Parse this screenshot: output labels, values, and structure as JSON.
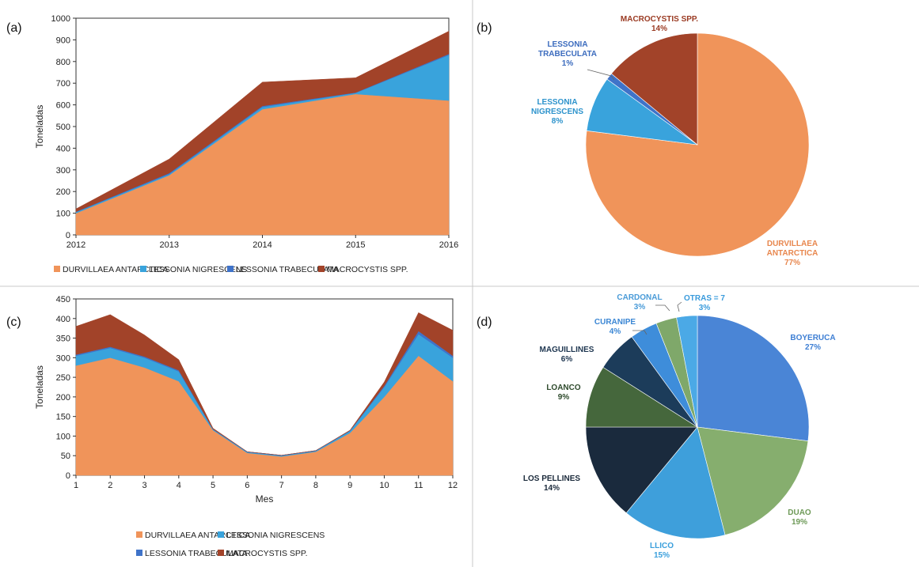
{
  "colors": {
    "durvillaea": "#F0945A",
    "nigrescens": "#39A3DC",
    "trabeculata": "#3F73C9",
    "macrocystis": "#A24329"
  },
  "chart_data": [
    {
      "panel": "(a)",
      "type": "area",
      "stacked": true,
      "x": [
        2012,
        2013,
        2014,
        2015,
        2016
      ],
      "ylabel": "Toneladas",
      "xlabel": "",
      "ylim": [
        0,
        1000
      ],
      "yticks": [
        0,
        100,
        200,
        300,
        400,
        500,
        600,
        700,
        800,
        900,
        1000
      ],
      "series": [
        {
          "name": "DURVILLAEA ANTARCTICA",
          "color": "#F0945A",
          "values": [
            100,
            275,
            580,
            650,
            620
          ]
        },
        {
          "name": "LESSONIA NIGRESCENS",
          "color": "#39A3DC",
          "values": [
            5,
            5,
            10,
            5,
            210
          ]
        },
        {
          "name": "LESSONIA TRABECULATA",
          "color": "#3F73C9",
          "values": [
            2,
            5,
            5,
            2,
            5
          ]
        },
        {
          "name": "MACROCYSTIS SPP.",
          "color": "#A24329",
          "values": [
            13,
            65,
            110,
            68,
            105
          ]
        }
      ],
      "legend": "bottom"
    },
    {
      "panel": "(b)",
      "type": "pie",
      "slices": [
        {
          "name": "DURVILLAEA ANTARCTICA",
          "value": 77,
          "label": "77%",
          "color": "#F0945A"
        },
        {
          "name": "LESSONIA NIGRESCENS",
          "value": 8,
          "label": "8%",
          "color": "#39A3DC"
        },
        {
          "name": "LESSONIA TRABECULATA",
          "value": 1,
          "label": "1%",
          "color": "#3F73C9"
        },
        {
          "name": "MACROCYSTIS SPP.",
          "value": 14,
          "label": "14%",
          "color": "#A24329"
        }
      ]
    },
    {
      "panel": "(c)",
      "type": "area",
      "stacked": true,
      "x": [
        1,
        2,
        3,
        4,
        5,
        6,
        7,
        8,
        9,
        10,
        11,
        12
      ],
      "xlabel": "Mes",
      "ylabel": "Toneladas",
      "ylim": [
        0,
        450
      ],
      "yticks": [
        0,
        50,
        100,
        150,
        200,
        250,
        300,
        350,
        400,
        450
      ],
      "series": [
        {
          "name": "DURVILLAEA ANTARCTICA",
          "color": "#F0945A",
          "values": [
            280,
            300,
            275,
            240,
            115,
            57,
            48,
            60,
            108,
            200,
            305,
            240
          ]
        },
        {
          "name": "LESSONIA NIGRESCENS",
          "color": "#39A3DC",
          "values": [
            25,
            25,
            25,
            25,
            2,
            2,
            2,
            2,
            5,
            25,
            55,
            60
          ]
        },
        {
          "name": "LESSONIA TRABECULATA",
          "color": "#3F73C9",
          "values": [
            3,
            3,
            3,
            3,
            1,
            1,
            1,
            1,
            1,
            3,
            8,
            5
          ]
        },
        {
          "name": "MACROCYSTIS SPP.",
          "color": "#A24329",
          "values": [
            72,
            82,
            55,
            27,
            2,
            0,
            0,
            0,
            1,
            10,
            47,
            65
          ]
        }
      ],
      "legend": "bottom"
    },
    {
      "panel": "(d)",
      "type": "pie",
      "slices": [
        {
          "name": "BOYERUCA",
          "value": 27,
          "label": "27%",
          "color": "#4A85D6"
        },
        {
          "name": "DUAO",
          "value": 19,
          "label": "19%",
          "color": "#86AE6E"
        },
        {
          "name": "LLICO",
          "value": 15,
          "label": "15%",
          "color": "#3E9FDB"
        },
        {
          "name": "LOS PELLINES",
          "value": 14,
          "label": "14%",
          "color": "#1A2A3D"
        },
        {
          "name": "LOANCO",
          "value": 9,
          "label": "9%",
          "color": "#45673C"
        },
        {
          "name": "MAGUILLINES",
          "value": 6,
          "label": "6%",
          "color": "#1C3C5A"
        },
        {
          "name": "CURANIPE",
          "value": 4,
          "label": "4%",
          "color": "#3E8DDA"
        },
        {
          "name": "CARDONAL",
          "value": 3,
          "label": "3%",
          "color": "#7FA86A"
        },
        {
          "name": "OTRAS = 7",
          "value": 3,
          "label": "3%",
          "color": "#4BA9E6"
        }
      ]
    }
  ]
}
